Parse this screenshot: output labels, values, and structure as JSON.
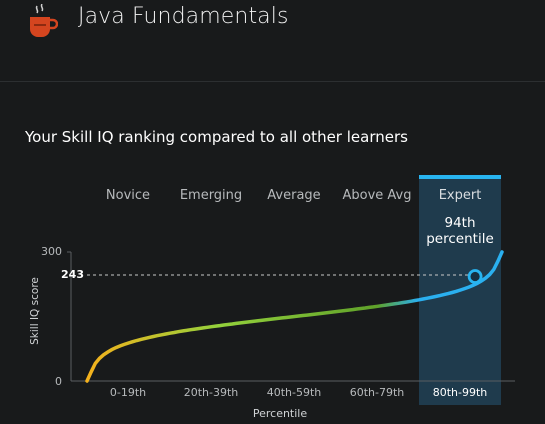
{
  "header": {
    "title": "Java Fundamentals",
    "icon": "coffee-cup-icon"
  },
  "section": {
    "title": "Your Skill IQ ranking compared to all other learners"
  },
  "chart_data": {
    "type": "line",
    "bands": [
      "Novice",
      "Emerging",
      "Average",
      "Above Avg",
      "Expert"
    ],
    "active_band": "Expert",
    "x_categories": [
      "0-19th",
      "20th-39th",
      "40th-59th",
      "60th-79th",
      "80th-99th"
    ],
    "xlabel": "Percentile",
    "ylabel": "Skill IQ score",
    "y_ticks": [
      "300",
      "0"
    ],
    "ylim": [
      0,
      300
    ],
    "user_score": 243,
    "user_score_label": "243",
    "user_percentile": 94,
    "user_percentile_label": [
      "94th",
      "percentile"
    ],
    "gradient_colors": [
      "#f6b11c",
      "#94d13c",
      "#5fa12a",
      "#2ab0f0"
    ],
    "accent": "#28b4f0"
  }
}
